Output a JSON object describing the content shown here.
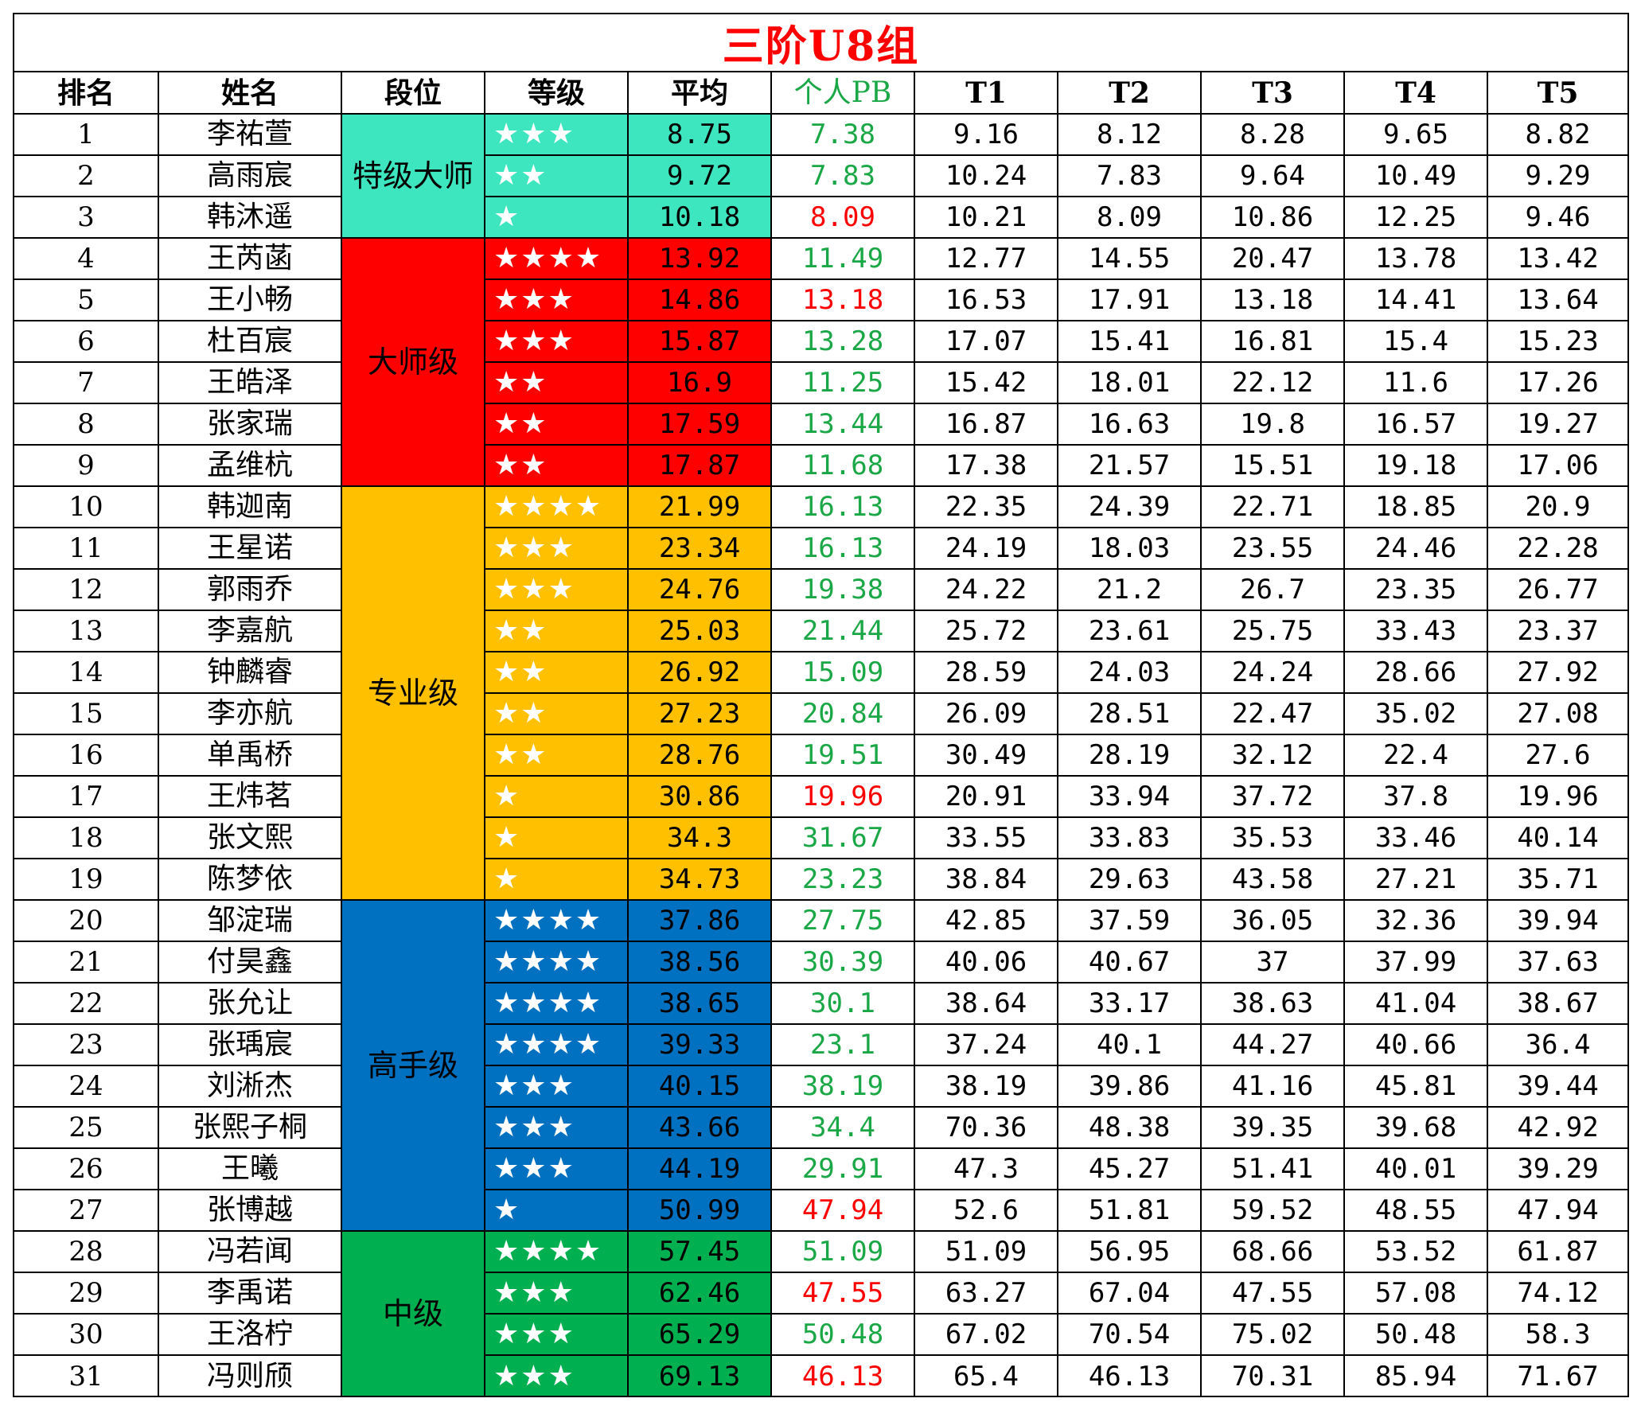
{
  "title": "三阶U8组",
  "headers": [
    "排名",
    "姓名",
    "段位",
    "等级",
    "平均",
    "个人PB",
    "T1",
    "T2",
    "T3",
    "T4",
    "T5"
  ],
  "tiers": [
    {
      "name": "特级大师",
      "color": "#3ee6c0",
      "rows": 3
    },
    {
      "name": "大师级",
      "color": "#ff0000",
      "rows": 6
    },
    {
      "name": "专业级",
      "color": "#ffc000",
      "rows": 10
    },
    {
      "name": "高手级",
      "color": "#0070c0",
      "rows": 8
    },
    {
      "name": "中级",
      "color": "#00b050",
      "rows": 4
    }
  ],
  "colors": {
    "title": "#ff0000",
    "pb_green": "#1aa846",
    "pb_red": "#ff0000",
    "stars": "#ffffff"
  },
  "rows": [
    {
      "rank": "1",
      "name": "李祐萱",
      "stars": 3,
      "avg": "8.75",
      "pb": "7.38",
      "pb_color": "green",
      "t": [
        "9.16",
        "8.12",
        "8.28",
        "9.65",
        "8.82"
      ]
    },
    {
      "rank": "2",
      "name": "高雨宸",
      "stars": 2,
      "avg": "9.72",
      "pb": "7.83",
      "pb_color": "green",
      "t": [
        "10.24",
        "7.83",
        "9.64",
        "10.49",
        "9.29"
      ]
    },
    {
      "rank": "3",
      "name": "韩沐遥",
      "stars": 1,
      "avg": "10.18",
      "pb": "8.09",
      "pb_color": "red",
      "t": [
        "10.21",
        "8.09",
        "10.86",
        "12.25",
        "9.46"
      ]
    },
    {
      "rank": "4",
      "name": "王芮菡",
      "stars": 4,
      "avg": "13.92",
      "pb": "11.49",
      "pb_color": "green",
      "t": [
        "12.77",
        "14.55",
        "20.47",
        "13.78",
        "13.42"
      ]
    },
    {
      "rank": "5",
      "name": "王小畅",
      "stars": 3,
      "avg": "14.86",
      "pb": "13.18",
      "pb_color": "red",
      "t": [
        "16.53",
        "17.91",
        "13.18",
        "14.41",
        "13.64"
      ]
    },
    {
      "rank": "6",
      "name": "杜百宸",
      "stars": 3,
      "avg": "15.87",
      "pb": "13.28",
      "pb_color": "green",
      "t": [
        "17.07",
        "15.41",
        "16.81",
        "15.4",
        "15.23"
      ]
    },
    {
      "rank": "7",
      "name": "王皓泽",
      "stars": 2,
      "avg": "16.9",
      "pb": "11.25",
      "pb_color": "green",
      "t": [
        "15.42",
        "18.01",
        "22.12",
        "11.6",
        "17.26"
      ]
    },
    {
      "rank": "8",
      "name": "张家瑞",
      "stars": 2,
      "avg": "17.59",
      "pb": "13.44",
      "pb_color": "green",
      "t": [
        "16.87",
        "16.63",
        "19.8",
        "16.57",
        "19.27"
      ]
    },
    {
      "rank": "9",
      "name": "孟维杭",
      "stars": 2,
      "avg": "17.87",
      "pb": "11.68",
      "pb_color": "green",
      "t": [
        "17.38",
        "21.57",
        "15.51",
        "19.18",
        "17.06"
      ]
    },
    {
      "rank": "10",
      "name": "韩迦南",
      "stars": 4,
      "avg": "21.99",
      "pb": "16.13",
      "pb_color": "green",
      "t": [
        "22.35",
        "24.39",
        "22.71",
        "18.85",
        "20.9"
      ]
    },
    {
      "rank": "11",
      "name": "王星诺",
      "stars": 3,
      "avg": "23.34",
      "pb": "16.13",
      "pb_color": "green",
      "t": [
        "24.19",
        "18.03",
        "23.55",
        "24.46",
        "22.28"
      ]
    },
    {
      "rank": "12",
      "name": "郭雨乔",
      "stars": 3,
      "avg": "24.76",
      "pb": "19.38",
      "pb_color": "green",
      "t": [
        "24.22",
        "21.2",
        "26.7",
        "23.35",
        "26.77"
      ]
    },
    {
      "rank": "13",
      "name": "李嘉航",
      "stars": 2,
      "avg": "25.03",
      "pb": "21.44",
      "pb_color": "green",
      "t": [
        "25.72",
        "23.61",
        "25.75",
        "33.43",
        "23.37"
      ]
    },
    {
      "rank": "14",
      "name": "钟麟睿",
      "stars": 2,
      "avg": "26.92",
      "pb": "15.09",
      "pb_color": "green",
      "t": [
        "28.59",
        "24.03",
        "24.24",
        "28.66",
        "27.92"
      ]
    },
    {
      "rank": "15",
      "name": "李亦航",
      "stars": 2,
      "avg": "27.23",
      "pb": "20.84",
      "pb_color": "green",
      "t": [
        "26.09",
        "28.51",
        "22.47",
        "35.02",
        "27.08"
      ]
    },
    {
      "rank": "16",
      "name": "单禹桥",
      "stars": 2,
      "avg": "28.76",
      "pb": "19.51",
      "pb_color": "green",
      "t": [
        "30.49",
        "28.19",
        "32.12",
        "22.4",
        "27.6"
      ]
    },
    {
      "rank": "17",
      "name": "王炜茗",
      "stars": 1,
      "avg": "30.86",
      "pb": "19.96",
      "pb_color": "red",
      "t": [
        "20.91",
        "33.94",
        "37.72",
        "37.8",
        "19.96"
      ]
    },
    {
      "rank": "18",
      "name": "张文熙",
      "stars": 1,
      "avg": "34.3",
      "pb": "31.67",
      "pb_color": "green",
      "t": [
        "33.55",
        "33.83",
        "35.53",
        "33.46",
        "40.14"
      ]
    },
    {
      "rank": "19",
      "name": "陈梦依",
      "stars": 1,
      "avg": "34.73",
      "pb": "23.23",
      "pb_color": "green",
      "t": [
        "38.84",
        "29.63",
        "43.58",
        "27.21",
        "35.71"
      ]
    },
    {
      "rank": "20",
      "name": "邹淀瑞",
      "stars": 4,
      "avg": "37.86",
      "pb": "27.75",
      "pb_color": "green",
      "t": [
        "42.85",
        "37.59",
        "36.05",
        "32.36",
        "39.94"
      ]
    },
    {
      "rank": "21",
      "name": "付昊鑫",
      "stars": 4,
      "avg": "38.56",
      "pb": "30.39",
      "pb_color": "green",
      "t": [
        "40.06",
        "40.67",
        "37",
        "37.99",
        "37.63"
      ]
    },
    {
      "rank": "22",
      "name": "张允让",
      "stars": 4,
      "avg": "38.65",
      "pb": "30.1",
      "pb_color": "green",
      "t": [
        "38.64",
        "33.17",
        "38.63",
        "41.04",
        "38.67"
      ]
    },
    {
      "rank": "23",
      "name": "张瑀宸",
      "stars": 4,
      "avg": "39.33",
      "pb": "23.1",
      "pb_color": "green",
      "t": [
        "37.24",
        "40.1",
        "44.27",
        "40.66",
        "36.4"
      ]
    },
    {
      "rank": "24",
      "name": "刘淅杰",
      "stars": 3,
      "avg": "40.15",
      "pb": "38.19",
      "pb_color": "green",
      "t": [
        "38.19",
        "39.86",
        "41.16",
        "45.81",
        "39.44"
      ]
    },
    {
      "rank": "25",
      "name": "张熙子桐",
      "stars": 3,
      "avg": "43.66",
      "pb": "34.4",
      "pb_color": "green",
      "t": [
        "70.36",
        "48.38",
        "39.35",
        "39.68",
        "42.92"
      ]
    },
    {
      "rank": "26",
      "name": "王曦",
      "stars": 3,
      "avg": "44.19",
      "pb": "29.91",
      "pb_color": "green",
      "t": [
        "47.3",
        "45.27",
        "51.41",
        "40.01",
        "39.29"
      ]
    },
    {
      "rank": "27",
      "name": "张博越",
      "stars": 1,
      "avg": "50.99",
      "pb": "47.94",
      "pb_color": "red",
      "t": [
        "52.6",
        "51.81",
        "59.52",
        "48.55",
        "47.94"
      ]
    },
    {
      "rank": "28",
      "name": "冯若闻",
      "stars": 4,
      "avg": "57.45",
      "pb": "51.09",
      "pb_color": "green",
      "t": [
        "51.09",
        "56.95",
        "68.66",
        "53.52",
        "61.87"
      ]
    },
    {
      "rank": "29",
      "name": "李禹诺",
      "stars": 3,
      "avg": "62.46",
      "pb": "47.55",
      "pb_color": "red",
      "t": [
        "63.27",
        "67.04",
        "47.55",
        "57.08",
        "74.12"
      ]
    },
    {
      "rank": "30",
      "name": "王洛柠",
      "stars": 3,
      "avg": "65.29",
      "pb": "50.48",
      "pb_color": "green",
      "t": [
        "67.02",
        "70.54",
        "75.02",
        "50.48",
        "58.3"
      ]
    },
    {
      "rank": "31",
      "name": "冯则颀",
      "stars": 3,
      "avg": "69.13",
      "pb": "46.13",
      "pb_color": "red",
      "t": [
        "65.4",
        "46.13",
        "70.31",
        "85.94",
        "71.67"
      ]
    }
  ]
}
